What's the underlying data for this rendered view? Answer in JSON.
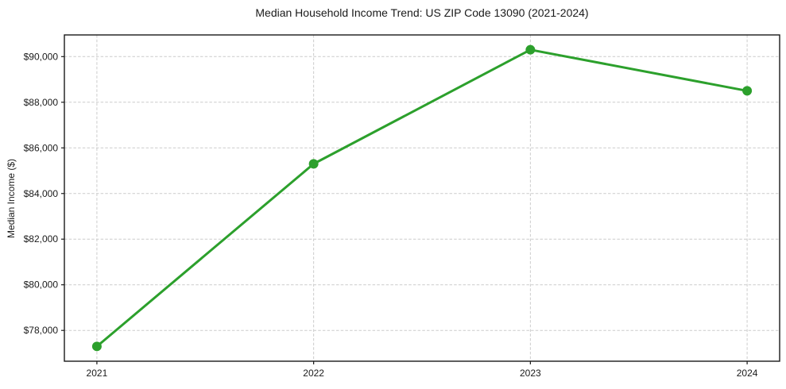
{
  "chart_data": {
    "type": "line",
    "title": "Median Household Income Trend: US ZIP Code 13090 (2021-2024)",
    "xlabel": "",
    "ylabel": "Median Income ($)",
    "x": [
      2021,
      2022,
      2023,
      2024
    ],
    "values": [
      77300,
      85300,
      90300,
      88500
    ],
    "xticks": [
      2021,
      2022,
      2023,
      2024
    ],
    "xtick_labels": [
      "2021",
      "2022",
      "2023",
      "2024"
    ],
    "yticks": [
      78000,
      80000,
      82000,
      84000,
      86000,
      88000,
      90000
    ],
    "ytick_labels": [
      "$78,000",
      "$80,000",
      "$82,000",
      "$84,000",
      "$86,000",
      "$88,000",
      "$90,000"
    ],
    "xlim": [
      2020.85,
      2024.15
    ],
    "ylim": [
      76650,
      90950
    ],
    "grid": true,
    "grid_style": "dashed",
    "legend": "none",
    "line_color": "#2ca02c",
    "marker": "circle",
    "grid_color": "#cccccc",
    "spine_color": "#1a1a1a",
    "background": "#ffffff"
  }
}
